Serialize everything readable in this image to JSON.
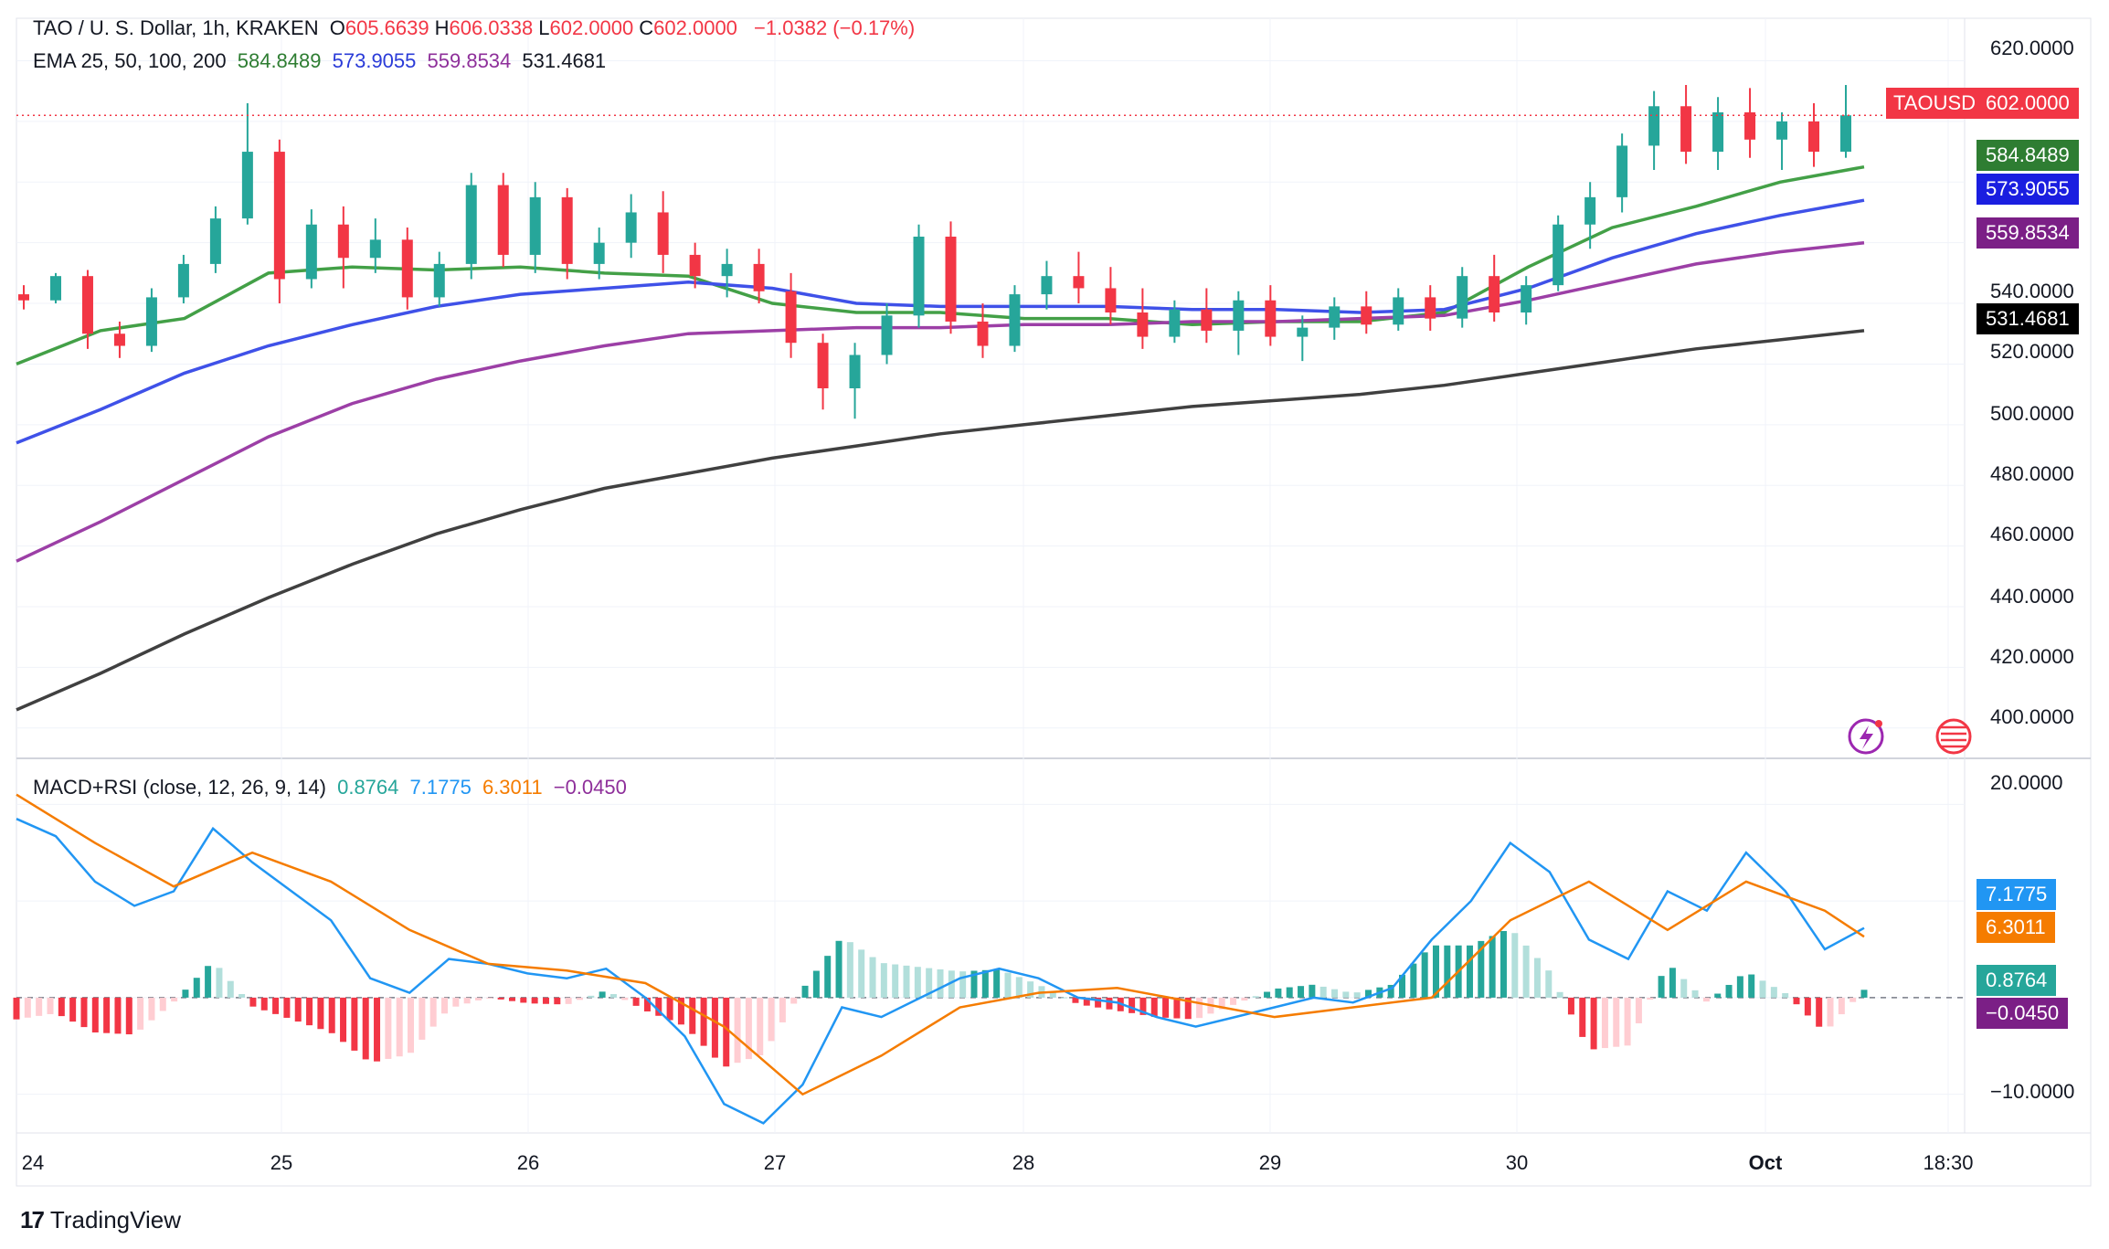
{
  "header": {
    "symbol_title": "TAO / U. S. Dollar, 1h, KRAKEN",
    "ohlc": [
      {
        "k": "O",
        "v": "605.6639"
      },
      {
        "k": "H",
        "v": "606.0338"
      },
      {
        "k": "L",
        "v": "602.0000"
      },
      {
        "k": "C",
        "v": "602.0000"
      }
    ],
    "change": "−1.0382 (−0.17%)",
    "ema_label": "EMA 25, 50, 100, 200",
    "ema_values": [
      "584.8489",
      "573.9055",
      "559.8534",
      "531.4681"
    ],
    "macd_label": "MACD+RSI (close, 12, 26, 9, 14)",
    "macd_values": [
      "0.8764",
      "7.1775",
      "6.3011",
      "−0.0450"
    ]
  },
  "tags": {
    "symbol": "TAOUSD",
    "price": "602.0000",
    "ema25": "584.8489",
    "ema50": "573.9055",
    "ema100": "559.8534",
    "ema200": "531.4681",
    "macd_line": "7.1775",
    "signal_line": "6.3011",
    "hist_a": "0.8764",
    "hist_b": "−0.0450"
  },
  "colors": {
    "up": "#26a69a",
    "down": "#f23645",
    "ema25": "#43a047",
    "ema50": "#3f51e8",
    "ema100": "#9c3fa6",
    "ema200": "#404040",
    "macd": "#2196f3",
    "signal": "#f57c00",
    "hist_pos": "#26a69a",
    "hist_neg": "#f23645"
  },
  "brand": "TradingView",
  "chart_data": {
    "type": "candlestick",
    "price_axis_ticks": [
      "620.0000",
      "540.0000",
      "520.0000",
      "500.0000",
      "480.0000",
      "460.0000",
      "440.0000",
      "420.0000",
      "400.0000"
    ],
    "macd_axis_ticks": [
      "20.0000",
      "−10.0000"
    ],
    "x_tick_labels": [
      "24",
      "25",
      "26",
      "27",
      "28",
      "29",
      "30",
      "Oct",
      "18:30"
    ],
    "price_range": [
      390,
      634
    ],
    "macd_range": [
      -14,
      24
    ],
    "ema_series": [
      {
        "name": "EMA 25",
        "points": [
          [
            0,
            520
          ],
          [
            1,
            531
          ],
          [
            2,
            535
          ],
          [
            3,
            550
          ],
          [
            4,
            552
          ],
          [
            5,
            551
          ],
          [
            6,
            552
          ],
          [
            7,
            550
          ],
          [
            8,
            549
          ],
          [
            9,
            540
          ],
          [
            10,
            537
          ],
          [
            11,
            537
          ],
          [
            12,
            535
          ],
          [
            13,
            535
          ],
          [
            14,
            533
          ],
          [
            15,
            534
          ],
          [
            16,
            534
          ],
          [
            17,
            537
          ],
          [
            18,
            552
          ],
          [
            19,
            565
          ],
          [
            20,
            572
          ],
          [
            21,
            580
          ],
          [
            22,
            585
          ]
        ]
      },
      {
        "name": "EMA 50",
        "points": [
          [
            0,
            494
          ],
          [
            1,
            505
          ],
          [
            2,
            517
          ],
          [
            3,
            526
          ],
          [
            4,
            533
          ],
          [
            5,
            539
          ],
          [
            6,
            543
          ],
          [
            7,
            545
          ],
          [
            8,
            547
          ],
          [
            9,
            545
          ],
          [
            10,
            540
          ],
          [
            11,
            539
          ],
          [
            12,
            539
          ],
          [
            13,
            539
          ],
          [
            14,
            538
          ],
          [
            15,
            538
          ],
          [
            16,
            537
          ],
          [
            17,
            538
          ],
          [
            18,
            545
          ],
          [
            19,
            555
          ],
          [
            20,
            563
          ],
          [
            21,
            569
          ],
          [
            22,
            574
          ]
        ]
      },
      {
        "name": "EMA 100",
        "points": [
          [
            0,
            455
          ],
          [
            1,
            468
          ],
          [
            2,
            482
          ],
          [
            3,
            496
          ],
          [
            4,
            507
          ],
          [
            5,
            515
          ],
          [
            6,
            521
          ],
          [
            7,
            526
          ],
          [
            8,
            530
          ],
          [
            9,
            531
          ],
          [
            10,
            532
          ],
          [
            11,
            532
          ],
          [
            12,
            533
          ],
          [
            13,
            533
          ],
          [
            14,
            534
          ],
          [
            15,
            534
          ],
          [
            16,
            535
          ],
          [
            17,
            536
          ],
          [
            18,
            541
          ],
          [
            19,
            547
          ],
          [
            20,
            553
          ],
          [
            21,
            557
          ],
          [
            22,
            560
          ]
        ]
      },
      {
        "name": "EMA 200",
        "points": [
          [
            0,
            406
          ],
          [
            1,
            418
          ],
          [
            2,
            431
          ],
          [
            3,
            443
          ],
          [
            4,
            454
          ],
          [
            5,
            464
          ],
          [
            6,
            472
          ],
          [
            7,
            479
          ],
          [
            8,
            484
          ],
          [
            9,
            489
          ],
          [
            10,
            493
          ],
          [
            11,
            497
          ],
          [
            12,
            500
          ],
          [
            13,
            503
          ],
          [
            14,
            506
          ],
          [
            15,
            508
          ],
          [
            16,
            510
          ],
          [
            17,
            513
          ],
          [
            18,
            517
          ],
          [
            19,
            521
          ],
          [
            20,
            525
          ],
          [
            21,
            528
          ],
          [
            22,
            531
          ]
        ]
      }
    ],
    "candles": [
      [
        0,
        543,
        546,
        538,
        541
      ],
      [
        1,
        541,
        550,
        540,
        549
      ],
      [
        2,
        549,
        551,
        525,
        530
      ],
      [
        3,
        530,
        534,
        522,
        526
      ],
      [
        4,
        526,
        545,
        524,
        542
      ],
      [
        5,
        542,
        556,
        540,
        553
      ],
      [
        6,
        553,
        572,
        550,
        568
      ],
      [
        7,
        568,
        606,
        566,
        590
      ],
      [
        8,
        590,
        594,
        540,
        548
      ],
      [
        9,
        548,
        571,
        545,
        566
      ],
      [
        10,
        566,
        572,
        545,
        555
      ],
      [
        11,
        555,
        568,
        550,
        561
      ],
      [
        12,
        561,
        565,
        538,
        542
      ],
      [
        13,
        542,
        557,
        539,
        553
      ],
      [
        14,
        553,
        583,
        548,
        579
      ],
      [
        15,
        579,
        583,
        552,
        556
      ],
      [
        16,
        556,
        580,
        550,
        575
      ],
      [
        17,
        575,
        578,
        548,
        553
      ],
      [
        18,
        553,
        565,
        548,
        560
      ],
      [
        19,
        560,
        576,
        555,
        570
      ],
      [
        20,
        570,
        577,
        550,
        556
      ],
      [
        21,
        556,
        560,
        545,
        549
      ],
      [
        22,
        549,
        558,
        542,
        553
      ],
      [
        23,
        553,
        558,
        540,
        544
      ],
      [
        24,
        544,
        550,
        522,
        527
      ],
      [
        25,
        527,
        530,
        505,
        512
      ],
      [
        26,
        512,
        527,
        502,
        523
      ],
      [
        27,
        523,
        540,
        520,
        536
      ],
      [
        28,
        536,
        566,
        532,
        562
      ],
      [
        29,
        562,
        567,
        530,
        534
      ],
      [
        30,
        534,
        540,
        522,
        526
      ],
      [
        31,
        526,
        546,
        524,
        543
      ],
      [
        32,
        543,
        554,
        538,
        549
      ],
      [
        33,
        549,
        557,
        540,
        545
      ],
      [
        34,
        545,
        552,
        533,
        537
      ],
      [
        35,
        537,
        545,
        525,
        529
      ],
      [
        36,
        529,
        541,
        527,
        538
      ],
      [
        37,
        538,
        545,
        527,
        531
      ],
      [
        38,
        531,
        544,
        523,
        541
      ],
      [
        39,
        541,
        546,
        526,
        529
      ],
      [
        40,
        529,
        536,
        521,
        532
      ],
      [
        41,
        532,
        542,
        528,
        539
      ],
      [
        42,
        539,
        544,
        530,
        533
      ],
      [
        43,
        533,
        545,
        531,
        542
      ],
      [
        44,
        542,
        546,
        531,
        535
      ],
      [
        45,
        535,
        552,
        532,
        549
      ],
      [
        46,
        549,
        556,
        534,
        537
      ],
      [
        47,
        537,
        549,
        533,
        546
      ],
      [
        48,
        546,
        569,
        544,
        566
      ],
      [
        49,
        566,
        580,
        558,
        575
      ],
      [
        50,
        575,
        596,
        570,
        592
      ],
      [
        51,
        592,
        610,
        584,
        605
      ],
      [
        52,
        605,
        612,
        586,
        590
      ],
      [
        53,
        590,
        608,
        584,
        603
      ],
      [
        54,
        603,
        611,
        588,
        594
      ],
      [
        55,
        594,
        603,
        584,
        600
      ],
      [
        56,
        600,
        606,
        585,
        590
      ],
      [
        57,
        590,
        612,
        588,
        602
      ]
    ],
    "macd_line": [
      [
        0,
        18.5
      ],
      [
        0.5,
        16.7
      ],
      [
        1,
        12
      ],
      [
        1.5,
        9.5
      ],
      [
        2,
        11
      ],
      [
        2.5,
        17.5
      ],
      [
        3,
        14
      ],
      [
        3.5,
        11
      ],
      [
        4,
        8
      ],
      [
        4.5,
        2
      ],
      [
        5,
        0.5
      ],
      [
        5.5,
        4
      ],
      [
        6,
        3.5
      ],
      [
        6.5,
        2.5
      ],
      [
        7,
        2
      ],
      [
        7.5,
        3
      ],
      [
        8,
        0
      ],
      [
        8.5,
        -4
      ],
      [
        9,
        -11
      ],
      [
        9.5,
        -13
      ],
      [
        10,
        -9
      ],
      [
        10.5,
        -1
      ],
      [
        11,
        -2
      ],
      [
        11.5,
        0
      ],
      [
        12,
        2
      ],
      [
        12.5,
        3
      ],
      [
        13,
        2
      ],
      [
        13.5,
        0
      ],
      [
        14,
        -0.5
      ],
      [
        14.5,
        -2
      ],
      [
        15,
        -3
      ],
      [
        15.5,
        -2
      ],
      [
        16,
        -1
      ],
      [
        16.5,
        0
      ],
      [
        17,
        -0.5
      ],
      [
        17.5,
        1
      ],
      [
        18,
        6
      ],
      [
        18.5,
        10
      ],
      [
        19,
        16
      ],
      [
        19.5,
        13
      ],
      [
        20,
        6
      ],
      [
        20.5,
        4
      ],
      [
        21,
        11
      ],
      [
        21.5,
        9
      ],
      [
        22,
        15
      ],
      [
        22.5,
        11
      ],
      [
        23,
        5
      ],
      [
        23.5,
        7.2
      ]
    ],
    "signal_line": [
      [
        0,
        21
      ],
      [
        1,
        16
      ],
      [
        2,
        11.5
      ],
      [
        3,
        15
      ],
      [
        4,
        12
      ],
      [
        5,
        7
      ],
      [
        6,
        3.5
      ],
      [
        7,
        2.8
      ],
      [
        8,
        1.5
      ],
      [
        9,
        -3
      ],
      [
        10,
        -10
      ],
      [
        11,
        -6
      ],
      [
        12,
        -1
      ],
      [
        13,
        0.5
      ],
      [
        14,
        1
      ],
      [
        15,
        -0.5
      ],
      [
        16,
        -2
      ],
      [
        17,
        -1
      ],
      [
        18,
        0
      ],
      [
        19,
        8
      ],
      [
        20,
        12
      ],
      [
        21,
        7
      ],
      [
        22,
        12
      ],
      [
        23,
        9
      ],
      [
        23.5,
        6.3
      ]
    ],
    "histogram_note": "bars alternate sign following macd minus signal"
  }
}
